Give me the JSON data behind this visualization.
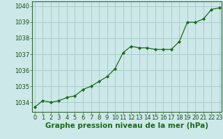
{
  "x": [
    0,
    1,
    2,
    3,
    4,
    5,
    6,
    7,
    8,
    9,
    10,
    11,
    12,
    13,
    14,
    15,
    16,
    17,
    18,
    19,
    20,
    21,
    22,
    23
  ],
  "y": [
    1033.7,
    1034.1,
    1034.0,
    1034.1,
    1034.3,
    1034.4,
    1034.8,
    1035.0,
    1035.3,
    1035.6,
    1036.1,
    1037.1,
    1037.5,
    1037.4,
    1037.4,
    1037.3,
    1037.3,
    1037.3,
    1037.8,
    1039.0,
    1039.0,
    1039.2,
    1039.8,
    1039.9
  ],
  "line_color": "#1a6b1a",
  "marker_color": "#1a6b1a",
  "bg_color": "#cce8e8",
  "grid_color": "#aacccc",
  "xlabel": "Graphe pression niveau de la mer (hPa)",
  "xlabel_fontsize": 7.5,
  "ylabel_ticks": [
    1034,
    1035,
    1036,
    1037,
    1038,
    1039,
    1040
  ],
  "ylim": [
    1033.4,
    1040.3
  ],
  "xlim": [
    -0.3,
    23.3
  ],
  "tick_fontsize": 6.0
}
